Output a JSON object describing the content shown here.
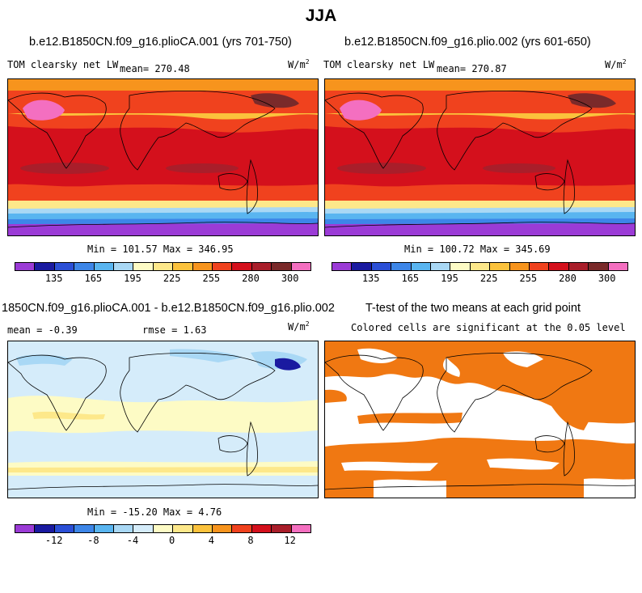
{
  "title": "JJA",
  "panels": {
    "p1": {
      "case_title": "b.e12.B1850CN.f09_g16.plioCA.001 (yrs 701-750)",
      "variable": "TOM clearsky net LW",
      "mean": "mean= 270.48",
      "units": "W/m",
      "units_sup": "2",
      "minmax": "Min = 101.57 Max = 346.95"
    },
    "p2": {
      "case_title": "b.e12.B1850CN.f09_g16.plio.002 (yrs 601-650)",
      "variable": "TOM clearsky net LW",
      "mean": "mean= 270.87",
      "units": "W/m",
      "units_sup": "2",
      "minmax": "Min = 100.72 Max = 345.69"
    },
    "p3": {
      "case_title": "1850CN.f09_g16.plioCA.001 - b.e12.B1850CN.f09_g16.plio.002",
      "mean": "mean =  -0.39",
      "rmse": "rmse =   1.63",
      "units": "W/m",
      "units_sup": "2",
      "minmax": "Min = -15.20 Max =   4.76"
    },
    "p4": {
      "case_title": "T-test of the two means at each grid point",
      "subtitle": "Colored cells are significant at the 0.05 level"
    }
  },
  "colorbars": {
    "abs": {
      "colors": [
        "#9b3bd6",
        "#1a1aa0",
        "#2b4fd6",
        "#3d86e8",
        "#59b5f0",
        "#a9d8f5",
        "#fdfbc5",
        "#fde88a",
        "#fbc23c",
        "#f7941d",
        "#f0421e",
        "#d4101c",
        "#a91e2a",
        "#7a2a2a",
        "#f46fc0"
      ],
      "ticks": [
        "135",
        "165",
        "195",
        "225",
        "255",
        "280",
        "300"
      ]
    },
    "diff": {
      "colors": [
        "#9b3bd6",
        "#1a1aa0",
        "#2b4fd6",
        "#3d86e8",
        "#59b5f0",
        "#a9d8f5",
        "#d5ecfa",
        "#fdfbc5",
        "#fde88a",
        "#fbc23c",
        "#f7941d",
        "#f0421e",
        "#d4101c",
        "#a91e2a",
        "#f46fc0"
      ],
      "ticks": [
        "-12",
        "-8",
        "-4",
        "0",
        "4",
        "8",
        "12"
      ]
    }
  },
  "colors": {
    "ttest_fill": "#f07812",
    "coast": "#000000"
  }
}
